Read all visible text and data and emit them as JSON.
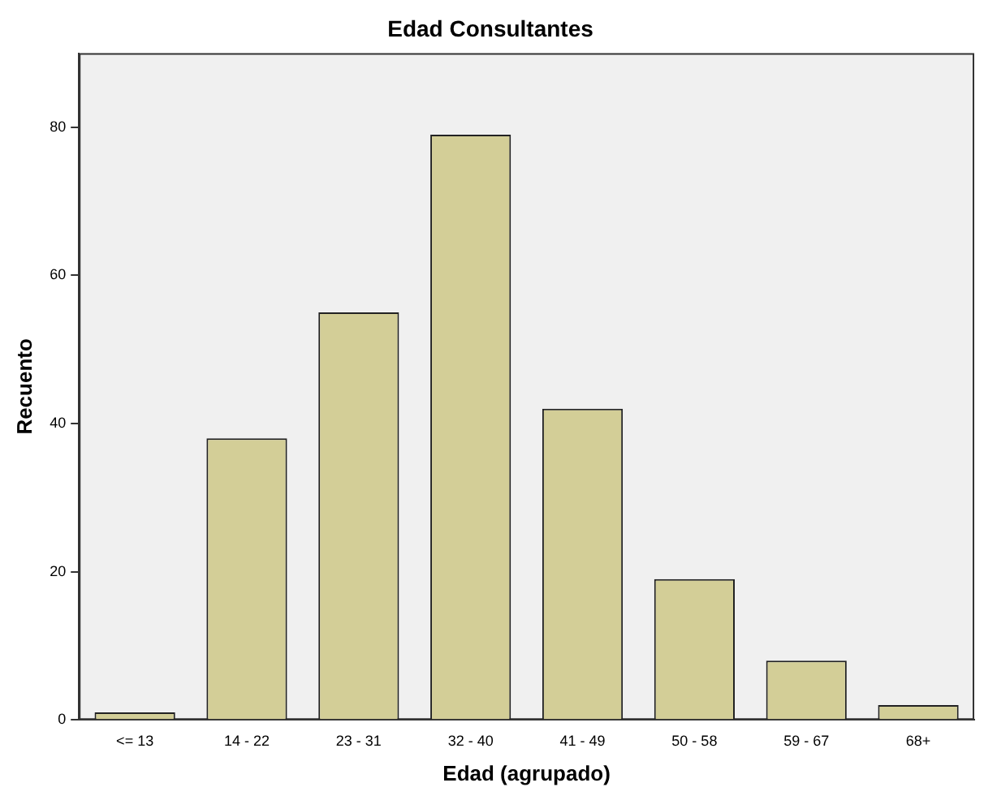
{
  "chart_data": {
    "type": "bar",
    "title": "Edad Consultantes",
    "xlabel": "Edad (agrupado)",
    "ylabel": "Recuento",
    "categories": [
      "<= 13",
      "14 - 22",
      "23 - 31",
      "32 - 40",
      "41 - 49",
      "50 - 58",
      "59 - 67",
      "68+"
    ],
    "values": [
      1,
      38,
      55,
      79,
      42,
      19,
      8,
      2
    ],
    "color": "#d3ce97",
    "ylim": [
      0,
      90
    ],
    "yticks": [
      0,
      20,
      40,
      60,
      80
    ],
    "grid": false,
    "legend": false
  }
}
